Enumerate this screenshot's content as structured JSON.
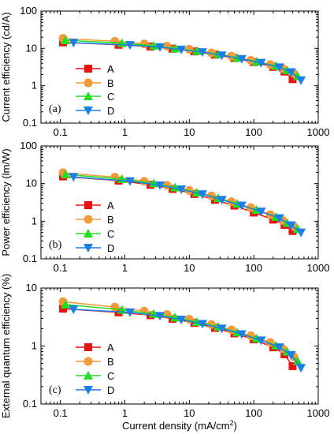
{
  "chart_data": [
    {
      "type": "line",
      "panel_label": "(a)",
      "ylabel": "Current efficiency (cd/A)",
      "xlabel": "",
      "x_scale": "log",
      "y_scale": "log",
      "xlim": [
        0.05,
        1000
      ],
      "ylim": [
        0.1,
        100
      ],
      "x_ticks": [
        "0.1",
        "1",
        "10",
        "100",
        "1000"
      ],
      "y_ticks": [
        "0.1",
        "1",
        "10",
        "100"
      ],
      "legend_position": "center-left",
      "series": [
        {
          "name": "A",
          "color": "#ee1111",
          "marker": "square",
          "x": [
            0.11,
            0.8,
            2.5,
            5.5,
            12,
            25,
            50,
            100,
            200,
            300,
            400
          ],
          "y": [
            14.5,
            12.5,
            11.2,
            9.8,
            8.3,
            6.8,
            5.5,
            4.3,
            3.2,
            2.4,
            1.5
          ]
        },
        {
          "name": "B",
          "color": "#f39a3a",
          "marker": "circle",
          "x": [
            0.11,
            0.7,
            2.0,
            4.5,
            10,
            22,
            45,
            90,
            180,
            280,
            420
          ],
          "y": [
            18.5,
            15.5,
            13.2,
            11.5,
            9.5,
            7.6,
            6.2,
            4.8,
            3.7,
            2.9,
            2.1
          ]
        },
        {
          "name": "C",
          "color": "#22dd22",
          "marker": "triangle-up",
          "x": [
            0.12,
            0.9,
            2.8,
            6.0,
            13,
            28,
            55,
            110,
            220,
            330,
            480
          ],
          "y": [
            16.5,
            13.8,
            11.8,
            10.0,
            8.5,
            7.0,
            5.6,
            4.4,
            3.4,
            2.6,
            1.8
          ]
        },
        {
          "name": "D",
          "color": "#1a7fe8",
          "marker": "triangle-down",
          "x": [
            0.16,
            1.2,
            3.5,
            7.5,
            16,
            32,
            65,
            130,
            250,
            380,
            540
          ],
          "y": [
            14.2,
            12.3,
            10.8,
            9.3,
            7.9,
            6.5,
            5.2,
            4.1,
            3.1,
            2.3,
            1.4
          ]
        }
      ]
    },
    {
      "type": "line",
      "panel_label": "(b)",
      "ylabel": "Power efficiency (lm/W)",
      "xlabel": "",
      "x_scale": "log",
      "y_scale": "log",
      "xlim": [
        0.05,
        1000
      ],
      "ylim": [
        0.1,
        100
      ],
      "x_ticks": [
        "0.1",
        "1",
        "10",
        "100",
        "1000"
      ],
      "y_ticks": [
        "0.1",
        "1",
        "10",
        "100"
      ],
      "legend_position": "center-left",
      "series": [
        {
          "name": "A",
          "color": "#ee1111",
          "marker": "square",
          "x": [
            0.11,
            0.8,
            2.5,
            5.5,
            12,
            25,
            50,
            100,
            200,
            300,
            400
          ],
          "y": [
            15.5,
            12.0,
            9.3,
            7.2,
            5.3,
            3.7,
            2.6,
            1.7,
            1.1,
            0.8,
            0.55
          ]
        },
        {
          "name": "B",
          "color": "#f39a3a",
          "marker": "circle",
          "x": [
            0.11,
            0.7,
            2.0,
            4.5,
            10,
            22,
            45,
            90,
            180,
            280,
            420
          ],
          "y": [
            19.5,
            14.8,
            11.5,
            9.0,
            6.6,
            4.7,
            3.3,
            2.3,
            1.5,
            1.05,
            0.72
          ]
        },
        {
          "name": "C",
          "color": "#22dd22",
          "marker": "triangle-up",
          "x": [
            0.12,
            0.9,
            2.8,
            6.0,
            13,
            28,
            55,
            110,
            220,
            330,
            480
          ],
          "y": [
            17.5,
            13.2,
            10.2,
            7.9,
            5.8,
            4.1,
            2.9,
            2.0,
            1.3,
            0.9,
            0.62
          ]
        },
        {
          "name": "D",
          "color": "#1a7fe8",
          "marker": "triangle-down",
          "x": [
            0.16,
            1.2,
            3.5,
            7.5,
            16,
            32,
            65,
            130,
            250,
            380,
            540
          ],
          "y": [
            15.0,
            11.6,
            9.0,
            7.0,
            5.2,
            3.7,
            2.6,
            1.8,
            1.2,
            0.78,
            0.5
          ]
        }
      ]
    },
    {
      "type": "line",
      "panel_label": "(c)",
      "ylabel": "External quantum efficiency (%)",
      "xlabel": "Current density (mA/cm²)",
      "x_scale": "log",
      "y_scale": "log",
      "xlim": [
        0.05,
        1000
      ],
      "ylim": [
        0.1,
        10
      ],
      "x_ticks": [
        "0.1",
        "1",
        "10",
        "100",
        "1000"
      ],
      "y_ticks": [
        "0.1",
        "1",
        "10"
      ],
      "legend_position": "lower-left",
      "series": [
        {
          "name": "A",
          "color": "#ee1111",
          "marker": "square",
          "x": [
            0.11,
            0.8,
            2.5,
            5.5,
            12,
            25,
            50,
            100,
            200,
            300,
            400
          ],
          "y": [
            4.4,
            3.8,
            3.4,
            2.95,
            2.5,
            2.05,
            1.65,
            1.3,
            0.95,
            0.72,
            0.45
          ]
        },
        {
          "name": "B",
          "color": "#f39a3a",
          "marker": "circle",
          "x": [
            0.11,
            0.7,
            2.0,
            4.5,
            10,
            22,
            45,
            90,
            180,
            280,
            420
          ],
          "y": [
            5.8,
            4.7,
            4.0,
            3.5,
            2.9,
            2.35,
            1.9,
            1.5,
            1.15,
            0.9,
            0.65
          ]
        },
        {
          "name": "C",
          "color": "#22dd22",
          "marker": "triangle-up",
          "x": [
            0.12,
            0.9,
            2.8,
            6.0,
            13,
            28,
            55,
            110,
            220,
            330,
            480
          ],
          "y": [
            5.2,
            4.2,
            3.6,
            3.1,
            2.6,
            2.15,
            1.72,
            1.35,
            1.02,
            0.8,
            0.55
          ]
        },
        {
          "name": "D",
          "color": "#1a7fe8",
          "marker": "triangle-down",
          "x": [
            0.16,
            1.2,
            3.5,
            7.5,
            16,
            32,
            65,
            130,
            250,
            380,
            540
          ],
          "y": [
            4.3,
            3.8,
            3.3,
            2.85,
            2.4,
            2.0,
            1.6,
            1.25,
            0.95,
            0.7,
            0.42
          ]
        }
      ]
    }
  ]
}
